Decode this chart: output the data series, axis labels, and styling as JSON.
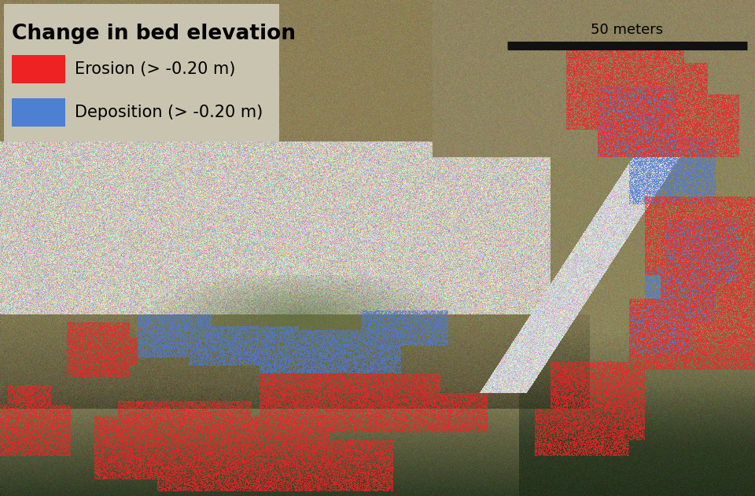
{
  "title": "Change in bed elevation",
  "legend_bg_color": "#c8c4b0",
  "erosion_color": "#ee2222",
  "erosion_label": "Erosion (> -0.20 m)",
  "deposition_color": "#4d7fd4",
  "deposition_label": "Deposition (> -0.20 m)",
  "scalebar_label": "50 meters",
  "scalebar_color": "#111111",
  "title_fontsize": 19,
  "legend_fontsize": 15,
  "scalebar_fontsize": 13,
  "figsize": [
    9.6,
    6.31
  ],
  "dpi": 100
}
